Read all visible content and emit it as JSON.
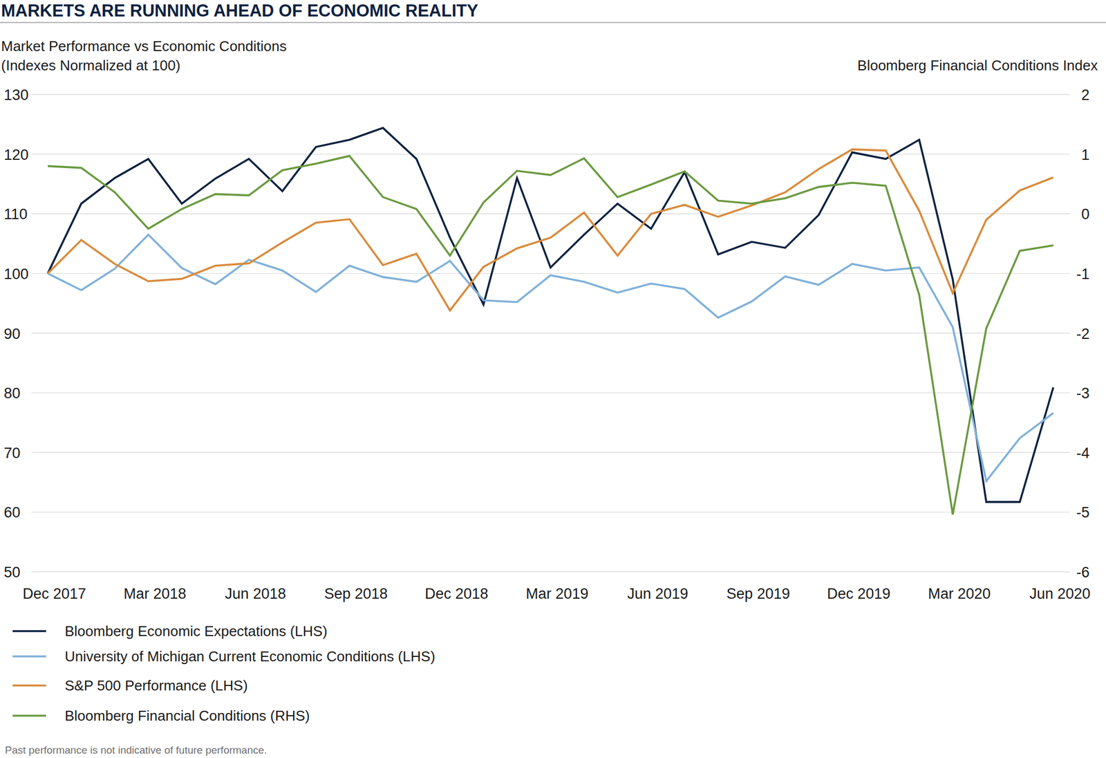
{
  "chart_data": {
    "type": "line",
    "title": "MARKETS ARE RUNNING AHEAD OF ECONOMIC REALITY",
    "subtitle": "Market Performance vs Economic Conditions",
    "y_label": "(Indexes Normalized at 100)",
    "y2_label": "Bloomberg Financial Conditions Index",
    "footnote": "Past performance is not indicative of future performance.",
    "categories": [
      "Dec 2017",
      null,
      null,
      "Mar 2018",
      null,
      null,
      "Jun 2018",
      null,
      null,
      "Sep 2018",
      null,
      null,
      "Dec 2018",
      null,
      null,
      "Mar 2019",
      null,
      null,
      "Jun 2019",
      null,
      null,
      "Sep 2019",
      null,
      null,
      "Dec 2019",
      null,
      null,
      "Mar 2020",
      null,
      null,
      "Jun 2020"
    ],
    "ylim": [
      50,
      130
    ],
    "yticks": [
      50,
      60,
      70,
      80,
      90,
      100,
      110,
      120,
      130
    ],
    "y2lim": [
      -6,
      2
    ],
    "y2ticks": [
      -6,
      -5,
      -4,
      -3,
      -2,
      -1,
      0,
      1,
      2
    ],
    "grid": true,
    "legend": "bottom",
    "series": [
      {
        "name": "Bloomberg Economic Expectations (LHS)",
        "color": "#0d2240",
        "values": [
          100,
          111.7,
          116,
          119.2,
          111.7,
          115.9,
          119.2,
          113.8,
          121.2,
          122.4,
          124.4,
          119.2,
          106,
          94.8,
          116,
          101,
          106.5,
          111.7,
          107.5,
          117,
          103.2,
          105.3,
          104.3,
          109.8,
          120.3,
          119.2,
          122.4,
          99,
          61.7,
          61.7,
          80.9
        ]
      },
      {
        "name": "University of Michigan Current Economic Conditions (LHS)",
        "color": "#7fb0d9",
        "values": [
          100,
          97.2,
          100.8,
          106.5,
          100.9,
          98.2,
          102.3,
          100.5,
          96.9,
          101.3,
          99.4,
          98.6,
          102.1,
          95.5,
          95.2,
          99.7,
          98.6,
          96.8,
          98.3,
          97.4,
          92.6,
          95.3,
          99.5,
          98.1,
          101.6,
          100.5,
          101,
          91,
          65.2,
          72.4,
          76.6
        ]
      },
      {
        "name": "S&P 500 Performance (LHS)",
        "color": "#d98a3a",
        "values": [
          100,
          105.6,
          101.6,
          98.7,
          99.1,
          101.3,
          101.7,
          105.2,
          108.5,
          109.1,
          101.4,
          103.3,
          93.8,
          101.1,
          104.2,
          106,
          110.2,
          103,
          110,
          111.5,
          109.5,
          111.4,
          113.6,
          117.5,
          120.8,
          120.6,
          110.5,
          96.7,
          109,
          113.9,
          116.1
        ]
      },
      {
        "name": "Bloomberg Financial Conditions (RHS)",
        "color": "#6a9a3f",
        "axis": "y2",
        "values": [
          0.8,
          0.77,
          0.36,
          -0.25,
          0.08,
          0.33,
          0.31,
          0.73,
          0.84,
          0.97,
          0.28,
          0.08,
          -0.7,
          0.19,
          0.72,
          0.65,
          0.93,
          0.28,
          0.49,
          0.71,
          0.22,
          0.17,
          0.26,
          0.45,
          0.52,
          0.47,
          -1.36,
          -5.04,
          -1.92,
          -0.62,
          -0.53
        ]
      }
    ]
  }
}
